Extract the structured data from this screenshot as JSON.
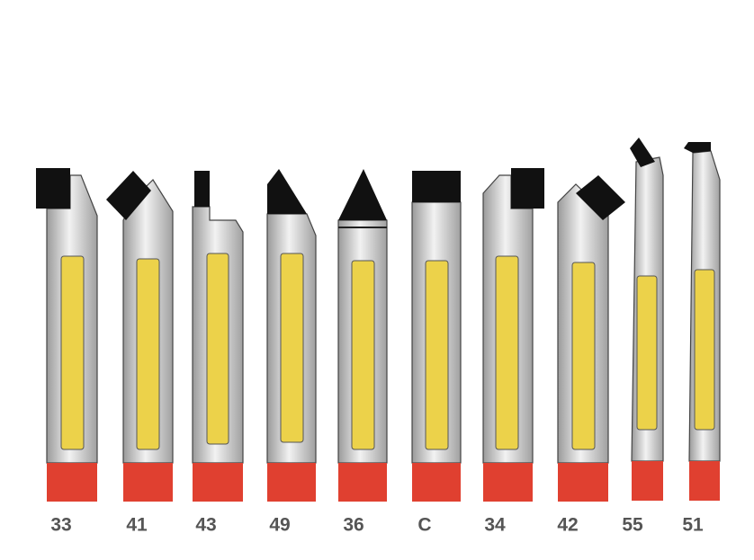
{
  "labels": [
    "33",
    "41",
    "43",
    "49",
    "36",
    "C",
    "34",
    "42",
    "55",
    "51"
  ]
}
